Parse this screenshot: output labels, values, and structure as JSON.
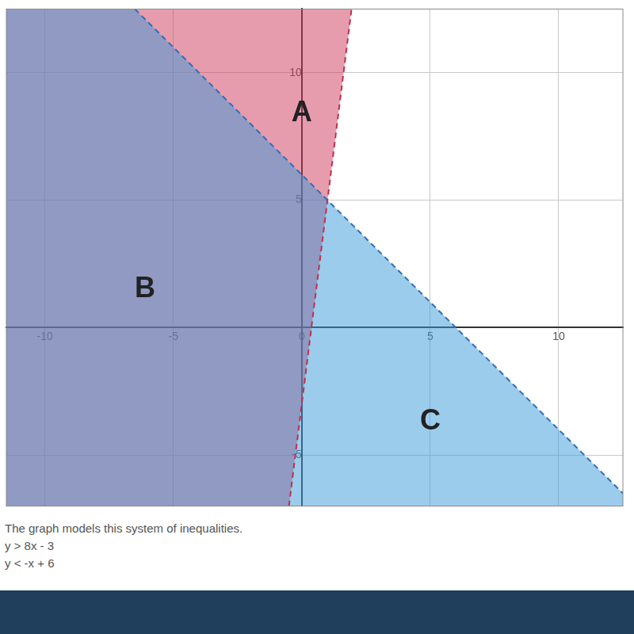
{
  "chart_data": {
    "type": "inequality_graph",
    "caption": "The graph models this system of inequalities.",
    "inequalities": [
      "y > 8x - 3",
      "y < -x + 6"
    ],
    "xlim": [
      -11.5,
      12.5
    ],
    "ylim": [
      -7,
      12.5
    ],
    "xticks": [
      -10,
      -5,
      0,
      5,
      10
    ],
    "yticks": [
      -5,
      5,
      10
    ],
    "grid": true,
    "series": [
      {
        "type": "area",
        "color": "#d03a5c",
        "x": [
          -11.5,
          -0.5,
          1.9375,
          -11.5
        ],
        "values": [
          -7,
          -7,
          12.5,
          12.5
        ]
      },
      {
        "type": "area",
        "color": "#3a9ad9",
        "x": [
          -11.5,
          -6.5,
          12.5,
          12.5,
          -11.5
        ],
        "values": [
          12.5,
          12.5,
          -6.5,
          -7,
          -7
        ]
      },
      {
        "type": "line",
        "color": "#c0304a",
        "line_style": "dashed",
        "x": [
          -0.5,
          1.9375
        ],
        "values": [
          -7,
          12.5
        ]
      },
      {
        "type": "line",
        "color": "#2f6fb8",
        "line_style": "dashed",
        "x": [
          -6.5,
          12.5
        ],
        "values": [
          12.5,
          -6.5
        ]
      }
    ],
    "annotations": [
      {
        "text": "A",
        "x": 0,
        "y": 8.4
      },
      {
        "text": "B",
        "x": -6.1,
        "y": 1.5
      },
      {
        "text": "C",
        "x": 5,
        "y": -3.7
      }
    ]
  }
}
